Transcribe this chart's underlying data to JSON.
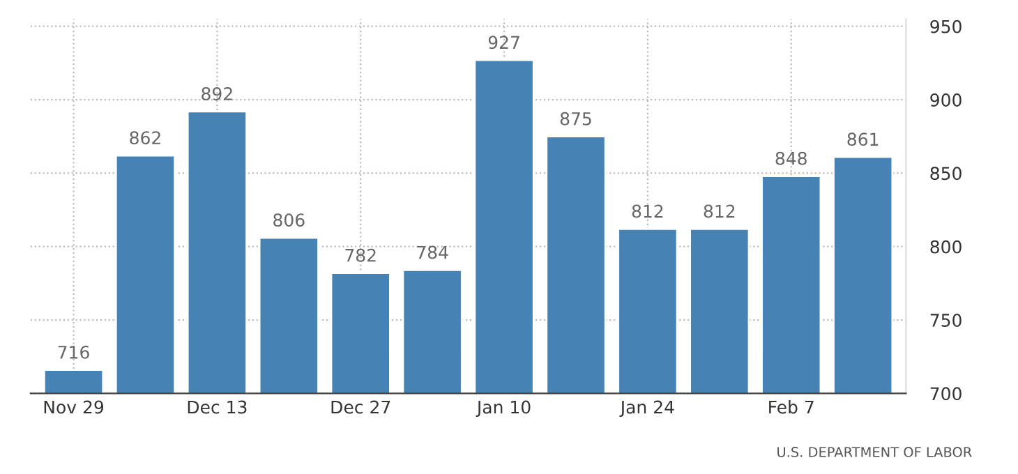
{
  "chart_data": {
    "type": "bar",
    "categories": [
      "Nov 29",
      null,
      "Dec 13",
      null,
      "Dec 27",
      null,
      "Jan 10",
      null,
      "Jan 24",
      null,
      "Feb 7",
      null
    ],
    "values": [
      716,
      862,
      892,
      806,
      782,
      784,
      927,
      875,
      812,
      812,
      848,
      861
    ],
    "color": "#4682b4",
    "ylim": [
      700,
      955
    ],
    "yticks": [
      700,
      750,
      800,
      850,
      900,
      950
    ],
    "grid": true,
    "data_labels": true,
    "annotations": [
      "U.S. DEPARTMENT OF LABOR"
    ]
  }
}
